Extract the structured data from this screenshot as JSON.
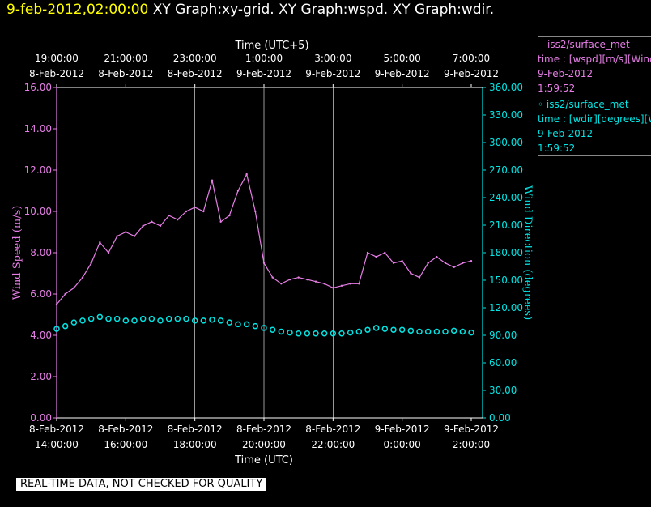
{
  "header": {
    "timestamp": "9-feb-2012,02:00:00",
    "rest": "XY Graph:xy-grid.  XY Graph:wspd.  XY Graph:wdir."
  },
  "legend": [
    {
      "line1": "—iss2/surface_met",
      "line2": "time : [wspd][m/s][Wind",
      "line3": "9-Feb-2012",
      "line4": "1:59:52"
    },
    {
      "line1": "◦ iss2/surface_met",
      "line2": "time : [wdir][degrees][W",
      "line3": "9-Feb-2012",
      "line4": "1:59:52"
    }
  ],
  "banner": "REAL-TIME DATA, NOT CHECKED FOR QUALITY",
  "colors": {
    "wspd": "#e67ee6",
    "wdir": "#00e5e5",
    "axis": "#ffffff",
    "grid": "#ffffff"
  },
  "chart_data": {
    "type": "line",
    "xlabel_top": "Time (UTC+5)",
    "xlabel_bottom": "Time (UTC)",
    "ylabel_left": "Wind Speed (m/s)",
    "ylabel_right": "Wind Direction (degrees)",
    "ylim_left": [
      0,
      16
    ],
    "ylim_right": [
      0,
      360
    ],
    "xlim_hours": [
      14,
      26
    ],
    "left_ticks": [
      "0.00",
      "2.00",
      "4.00",
      "6.00",
      "8.00",
      "10.00",
      "12.00",
      "14.00",
      "16.00"
    ],
    "right_ticks": [
      "0.00",
      "30.00",
      "60.00",
      "90.00",
      "120.00",
      "150.00",
      "180.00",
      "210.00",
      "240.00",
      "270.00",
      "300.00",
      "330.00",
      "360.00"
    ],
    "bottom_ticks": [
      {
        "date": "8-Feb-2012",
        "time": "14:00:00"
      },
      {
        "date": "8-Feb-2012",
        "time": "16:00:00"
      },
      {
        "date": "8-Feb-2012",
        "time": "18:00:00"
      },
      {
        "date": "8-Feb-2012",
        "time": "20:00:00"
      },
      {
        "date": "8-Feb-2012",
        "time": "22:00:00"
      },
      {
        "date": "9-Feb-2012",
        "time": "0:00:00"
      },
      {
        "date": "9-Feb-2012",
        "time": "2:00:00"
      }
    ],
    "top_ticks": [
      {
        "time": "19:00:00",
        "date": "8-Feb-2012"
      },
      {
        "time": "21:00:00",
        "date": "8-Feb-2012"
      },
      {
        "time": "23:00:00",
        "date": "8-Feb-2012"
      },
      {
        "time": "1:00:00",
        "date": "9-Feb-2012"
      },
      {
        "time": "3:00:00",
        "date": "9-Feb-2012"
      },
      {
        "time": "5:00:00",
        "date": "9-Feb-2012"
      },
      {
        "time": "7:00:00",
        "date": "9-Feb-2012"
      }
    ],
    "grid": true,
    "series": [
      {
        "name": "iss2/surface_met wspd",
        "axis": "left",
        "x_hours": [
          14.0,
          14.25,
          14.5,
          14.75,
          15.0,
          15.25,
          15.5,
          15.75,
          16.0,
          16.25,
          16.5,
          16.75,
          17.0,
          17.25,
          17.5,
          17.75,
          18.0,
          18.25,
          18.5,
          18.75,
          19.0,
          19.25,
          19.5,
          19.75,
          20.0,
          20.25,
          20.5,
          20.75,
          21.0,
          21.25,
          21.5,
          21.75,
          22.0,
          22.25,
          22.5,
          22.75,
          23.0,
          23.25,
          23.5,
          23.75,
          24.0,
          24.25,
          24.5,
          24.75,
          25.0,
          25.25,
          25.5,
          25.75,
          26.0
        ],
        "values": [
          5.5,
          6.0,
          6.3,
          6.8,
          7.5,
          8.5,
          8.0,
          8.8,
          9.0,
          8.8,
          9.3,
          9.5,
          9.3,
          9.8,
          9.6,
          10.0,
          10.2,
          10.0,
          11.5,
          9.5,
          9.8,
          11.0,
          11.8,
          10.0,
          7.5,
          6.8,
          6.5,
          6.7,
          6.8,
          6.7,
          6.6,
          6.5,
          6.3,
          6.4,
          6.5,
          6.5,
          8.0,
          7.8,
          8.0,
          7.5,
          7.6,
          7.0,
          6.8,
          7.5,
          7.8,
          7.5,
          7.3,
          7.5,
          7.6
        ]
      },
      {
        "name": "iss2/surface_met wdir",
        "axis": "right",
        "x_hours": [
          14.0,
          14.25,
          14.5,
          14.75,
          15.0,
          15.25,
          15.5,
          15.75,
          16.0,
          16.25,
          16.5,
          16.75,
          17.0,
          17.25,
          17.5,
          17.75,
          18.0,
          18.25,
          18.5,
          18.75,
          19.0,
          19.25,
          19.5,
          19.75,
          20.0,
          20.25,
          20.5,
          20.75,
          21.0,
          21.25,
          21.5,
          21.75,
          22.0,
          22.25,
          22.5,
          22.75,
          23.0,
          23.25,
          23.5,
          23.75,
          24.0,
          24.25,
          24.5,
          24.75,
          25.0,
          25.25,
          25.5,
          25.75,
          26.0
        ],
        "values": [
          97,
          100,
          104,
          106,
          108,
          110,
          108,
          108,
          106,
          106,
          108,
          108,
          106,
          108,
          108,
          108,
          106,
          106,
          107,
          106,
          104,
          102,
          102,
          100,
          98,
          96,
          94,
          93,
          92,
          92,
          92,
          92,
          92,
          92,
          93,
          94,
          96,
          98,
          97,
          96,
          96,
          95,
          94,
          94,
          94,
          94,
          95,
          94,
          93
        ]
      }
    ]
  }
}
